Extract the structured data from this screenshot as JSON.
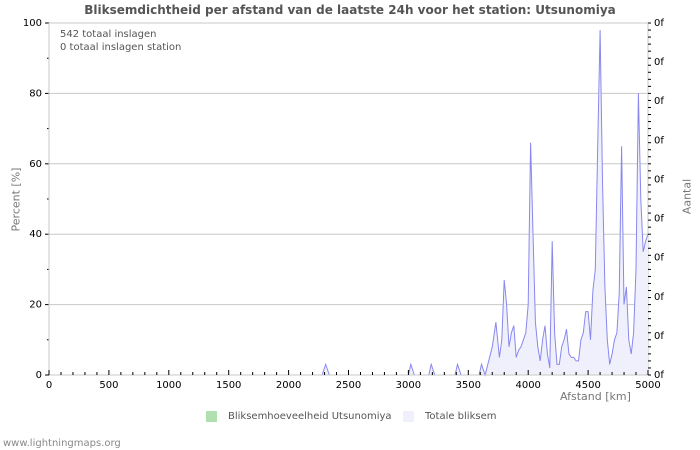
{
  "title": "Bliksemdichtheid per afstand van de laatste 24h voor het station: Utsunomiya",
  "annotations": [
    "542 totaal inslagen",
    "0 totaal inslagen station"
  ],
  "footer": "www.lightningmaps.org",
  "colors": {
    "series_line": "#8888ee",
    "series_fill": "#f0f0fc",
    "station": "#b0dfb0",
    "grid": "#c8c8c8"
  },
  "chart_data": {
    "type": "area",
    "title": "Bliksemdichtheid per afstand van de laatste 24h voor het station: Utsunomiya",
    "xlabel": "Afstand   [km]",
    "ylabel": "Percent   [%]",
    "ylabel_right": "Aantal",
    "xlim": [
      0,
      5000
    ],
    "ylim": [
      0,
      100
    ],
    "x_ticks": [
      "0",
      "500",
      "1000",
      "1500",
      "2000",
      "2500",
      "3000",
      "3500",
      "4000",
      "4500",
      "5000"
    ],
    "y_ticks": [
      "0",
      "20",
      "40",
      "60",
      "80",
      "100"
    ],
    "y_right_ticks": [
      "0f",
      "0f",
      "0f",
      "0f",
      "0f",
      "0f",
      "0f",
      "0f",
      "0f",
      "0f"
    ],
    "grid": true,
    "legend": [
      "Bliksemhoeveelheid Utsunomiya",
      "Totale bliksem"
    ],
    "legend_position": "bottom",
    "series": [
      {
        "name": "Totale bliksem",
        "x": [
          0,
          2280,
          2310,
          2340,
          3000,
          3020,
          3050,
          3170,
          3190,
          3220,
          3390,
          3410,
          3440,
          3590,
          3610,
          3640,
          3670,
          3700,
          3730,
          3760,
          3780,
          3800,
          3820,
          3840,
          3860,
          3880,
          3900,
          3920,
          3940,
          3960,
          3980,
          4000,
          4020,
          4040,
          4060,
          4080,
          4100,
          4120,
          4140,
          4160,
          4180,
          4200,
          4220,
          4240,
          4260,
          4280,
          4300,
          4320,
          4340,
          4360,
          4380,
          4400,
          4420,
          4440,
          4460,
          4480,
          4500,
          4520,
          4540,
          4560,
          4580,
          4600,
          4620,
          4640,
          4660,
          4680,
          4700,
          4720,
          4740,
          4760,
          4780,
          4800,
          4820,
          4840,
          4860,
          4880,
          4900,
          4920,
          4940,
          4960,
          4980,
          5000
        ],
        "values": [
          0,
          0,
          3,
          0,
          0,
          3,
          0,
          0,
          3,
          0,
          0,
          3,
          0,
          0,
          3,
          0,
          4,
          8,
          15,
          5,
          10,
          27,
          20,
          8,
          12,
          14,
          5,
          7,
          8,
          10,
          12,
          20,
          66,
          40,
          15,
          8,
          4,
          10,
          14,
          6,
          2,
          38,
          12,
          3,
          3,
          8,
          10,
          13,
          6,
          5,
          5,
          4,
          4,
          10,
          12,
          18,
          18,
          10,
          24,
          30,
          65,
          98,
          55,
          25,
          10,
          3,
          6,
          10,
          12,
          23,
          65,
          20,
          25,
          10,
          6,
          12,
          30,
          80,
          50,
          35,
          38,
          40
        ]
      },
      {
        "name": "Bliksemhoeveelheid Utsunomiya",
        "x": [
          0,
          5000
        ],
        "values": [
          0,
          0
        ]
      }
    ]
  }
}
